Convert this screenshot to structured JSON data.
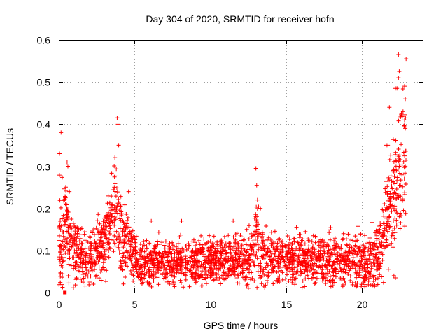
{
  "chart_data": {
    "type": "scatter",
    "title": "Day 304 of 2020, SRMTID for receiver hofn",
    "xlabel": "GPS time / hours",
    "ylabel": "SRMTID / TECUs",
    "xlim": [
      0,
      24
    ],
    "ylim": [
      0,
      0.6
    ],
    "x_ticks": [
      0,
      5,
      10,
      15,
      20
    ],
    "x_tick_labels": [
      "0",
      "5",
      "10",
      "15",
      "20"
    ],
    "y_ticks": [
      0,
      0.1,
      0.2,
      0.3,
      0.4,
      0.5,
      0.6
    ],
    "y_tick_labels": [
      "0",
      "0.1",
      "0.2",
      "0.3",
      "0.4",
      "0.5",
      "0.6"
    ],
    "grid": true,
    "marker": "plus",
    "color": "#ff0000",
    "series": [
      {
        "name": "SRMTID",
        "profile": [
          [
            0.0,
            0.12,
            0.05
          ],
          [
            0.2,
            0.13,
            0.06
          ],
          [
            0.4,
            0.17,
            0.05
          ],
          [
            0.6,
            0.14,
            0.05
          ],
          [
            0.8,
            0.11,
            0.04
          ],
          [
            1.0,
            0.1,
            0.04
          ],
          [
            1.5,
            0.09,
            0.035
          ],
          [
            2.0,
            0.09,
            0.035
          ],
          [
            2.5,
            0.1,
            0.035
          ],
          [
            3.0,
            0.12,
            0.04
          ],
          [
            3.5,
            0.18,
            0.05
          ],
          [
            3.8,
            0.24,
            0.05
          ],
          [
            4.0,
            0.14,
            0.05
          ],
          [
            4.3,
            0.13,
            0.04
          ],
          [
            4.6,
            0.11,
            0.035
          ],
          [
            5.0,
            0.08,
            0.025
          ],
          [
            6.0,
            0.07,
            0.025
          ],
          [
            7.0,
            0.07,
            0.025
          ],
          [
            8.0,
            0.07,
            0.025
          ],
          [
            9.0,
            0.07,
            0.025
          ],
          [
            10.0,
            0.075,
            0.025
          ],
          [
            11.0,
            0.075,
            0.025
          ],
          [
            12.0,
            0.075,
            0.025
          ],
          [
            12.5,
            0.08,
            0.03
          ],
          [
            13.0,
            0.12,
            0.045
          ],
          [
            13.3,
            0.09,
            0.035
          ],
          [
            14.0,
            0.08,
            0.03
          ],
          [
            15.0,
            0.08,
            0.03
          ],
          [
            16.0,
            0.08,
            0.03
          ],
          [
            17.0,
            0.075,
            0.03
          ],
          [
            18.0,
            0.075,
            0.03
          ],
          [
            19.0,
            0.075,
            0.03
          ],
          [
            20.0,
            0.075,
            0.03
          ],
          [
            20.6,
            0.07,
            0.03
          ],
          [
            21.0,
            0.09,
            0.04
          ],
          [
            21.3,
            0.13,
            0.05
          ],
          [
            21.6,
            0.16,
            0.05
          ],
          [
            22.0,
            0.22,
            0.06
          ],
          [
            22.3,
            0.26,
            0.07
          ],
          [
            22.6,
            0.3,
            0.08
          ],
          [
            22.9,
            0.3,
            0.08
          ]
        ],
        "outliers": [
          [
            0.05,
            0.33
          ],
          [
            0.15,
            0.38
          ],
          [
            0.55,
            0.31
          ],
          [
            0.6,
            0.3
          ],
          [
            0.7,
            0.24
          ],
          [
            3.85,
            0.415
          ],
          [
            3.9,
            0.4
          ],
          [
            3.95,
            0.35
          ],
          [
            3.9,
            0.32
          ],
          [
            4.6,
            0.24
          ],
          [
            6.1,
            0.17
          ],
          [
            8.1,
            0.17
          ],
          [
            11.5,
            0.17
          ],
          [
            12.4,
            0.15
          ],
          [
            13.0,
            0.295
          ],
          [
            13.05,
            0.255
          ],
          [
            13.1,
            0.22
          ],
          [
            13.3,
            0.2
          ],
          [
            21.6,
            0.35
          ],
          [
            21.7,
            0.35
          ],
          [
            21.8,
            0.44
          ],
          [
            22.2,
            0.485
          ],
          [
            22.3,
            0.485
          ],
          [
            22.4,
            0.51
          ],
          [
            22.45,
            0.525
          ],
          [
            22.4,
            0.565
          ],
          [
            22.8,
            0.49
          ],
          [
            22.85,
            0.46
          ],
          [
            22.9,
            0.555
          ],
          [
            22.7,
            0.43
          ],
          [
            22.8,
            0.41
          ],
          [
            22.85,
            0.39
          ],
          [
            22.1,
            0.04
          ],
          [
            22.2,
            0.035
          ]
        ],
        "extra_marker": {
          "x": 0.4,
          "y": 0.0,
          "shape": "square"
        }
      }
    ]
  }
}
